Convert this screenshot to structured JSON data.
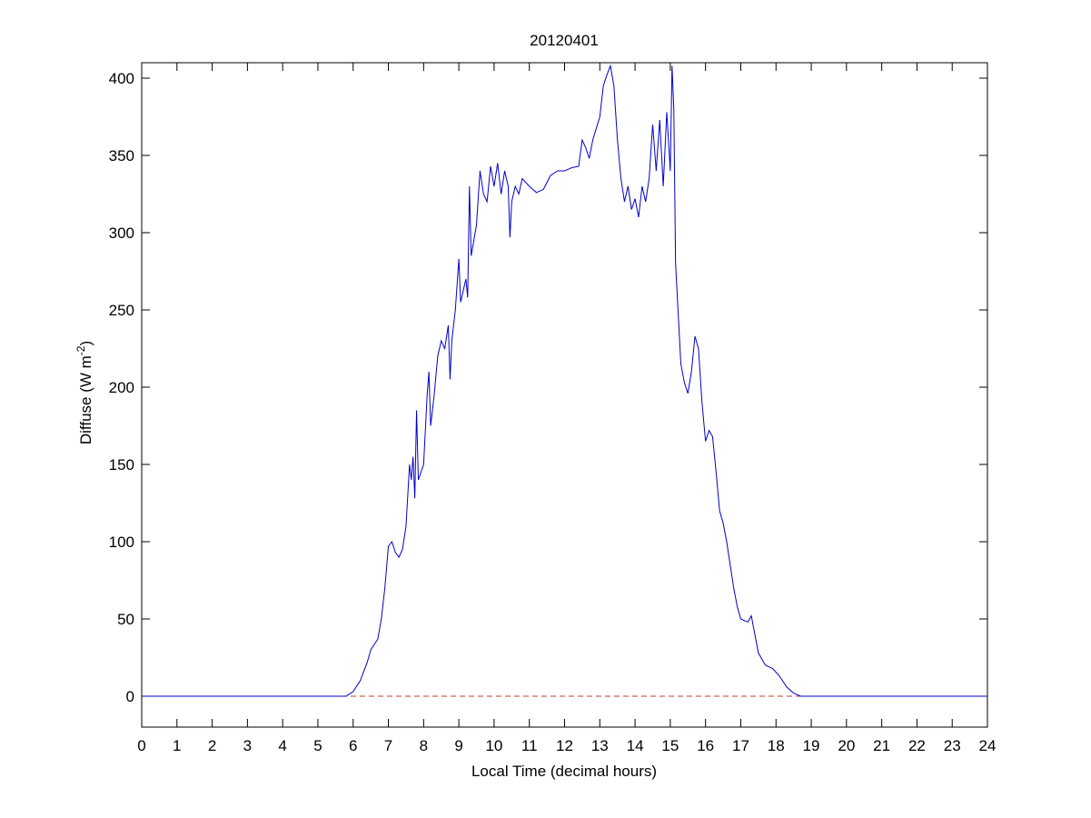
{
  "chart_data": {
    "type": "line",
    "title": "20120401",
    "xlabel": "Local Time (decimal hours)",
    "ylabel": {
      "text": "Diffuse (W m",
      "superscript": "-2",
      "suffix": ")"
    },
    "xlim": [
      0,
      24
    ],
    "ylim": [
      -20,
      410
    ],
    "xticks": [
      0,
      1,
      2,
      3,
      4,
      5,
      6,
      7,
      8,
      9,
      10,
      11,
      12,
      13,
      14,
      15,
      16,
      17,
      18,
      19,
      20,
      21,
      22,
      23,
      24
    ],
    "yticks": [
      0,
      50,
      100,
      150,
      200,
      250,
      300,
      350,
      400
    ],
    "reference_line": {
      "value": 0,
      "color": "#c0392b",
      "dashed": true
    },
    "series": [
      {
        "color": "#0000cc",
        "x": [
          0,
          5.8,
          6.0,
          6.2,
          6.4,
          6.5,
          6.7,
          6.8,
          6.9,
          7.0,
          7.1,
          7.2,
          7.3,
          7.4,
          7.5,
          7.6,
          7.65,
          7.7,
          7.75,
          7.8,
          7.85,
          8.0,
          8.1,
          8.15,
          8.2,
          8.3,
          8.4,
          8.5,
          8.6,
          8.7,
          8.75,
          8.8,
          8.9,
          9.0,
          9.05,
          9.2,
          9.25,
          9.3,
          9.35,
          9.5,
          9.6,
          9.7,
          9.8,
          9.9,
          10.0,
          10.1,
          10.2,
          10.3,
          10.4,
          10.45,
          10.5,
          10.6,
          10.7,
          10.8,
          11.0,
          11.2,
          11.4,
          11.6,
          11.8,
          12.0,
          12.2,
          12.4,
          12.5,
          12.6,
          12.7,
          12.8,
          13.0,
          13.1,
          13.2,
          13.3,
          13.4,
          13.5,
          13.6,
          13.7,
          13.8,
          13.9,
          14.0,
          14.1,
          14.2,
          14.3,
          14.4,
          14.5,
          14.6,
          14.7,
          14.8,
          14.9,
          15.0,
          15.05,
          15.1,
          15.15,
          15.3,
          15.4,
          15.5,
          15.6,
          15.7,
          15.8,
          15.9,
          16.0,
          16.1,
          16.2,
          16.3,
          16.4,
          16.5,
          16.6,
          16.7,
          16.8,
          16.9,
          17.0,
          17.2,
          17.3,
          17.4,
          17.5,
          17.7,
          17.9,
          18.1,
          18.3,
          18.5,
          18.7,
          19.0,
          24
        ],
        "values": [
          0,
          0,
          3,
          10,
          22,
          30,
          37,
          50,
          70,
          97,
          100,
          93,
          90,
          95,
          110,
          150,
          140,
          155,
          128,
          185,
          140,
          150,
          195,
          210,
          175,
          195,
          220,
          230,
          225,
          240,
          205,
          230,
          250,
          283,
          255,
          270,
          258,
          330,
          285,
          305,
          340,
          325,
          320,
          343,
          330,
          345,
          325,
          340,
          330,
          297,
          320,
          330,
          325,
          335,
          330,
          326,
          328,
          337,
          340,
          340,
          342,
          343,
          360,
          355,
          348,
          360,
          375,
          395,
          402,
          408,
          395,
          360,
          335,
          320,
          330,
          315,
          322,
          310,
          330,
          320,
          335,
          370,
          340,
          373,
          330,
          378,
          340,
          408,
          380,
          280,
          215,
          203,
          196,
          210,
          233,
          225,
          190,
          165,
          172,
          168,
          145,
          120,
          112,
          100,
          85,
          70,
          58,
          50,
          48,
          52,
          40,
          28,
          20,
          18,
          13,
          6,
          2,
          0,
          0,
          0
        ]
      }
    ]
  }
}
